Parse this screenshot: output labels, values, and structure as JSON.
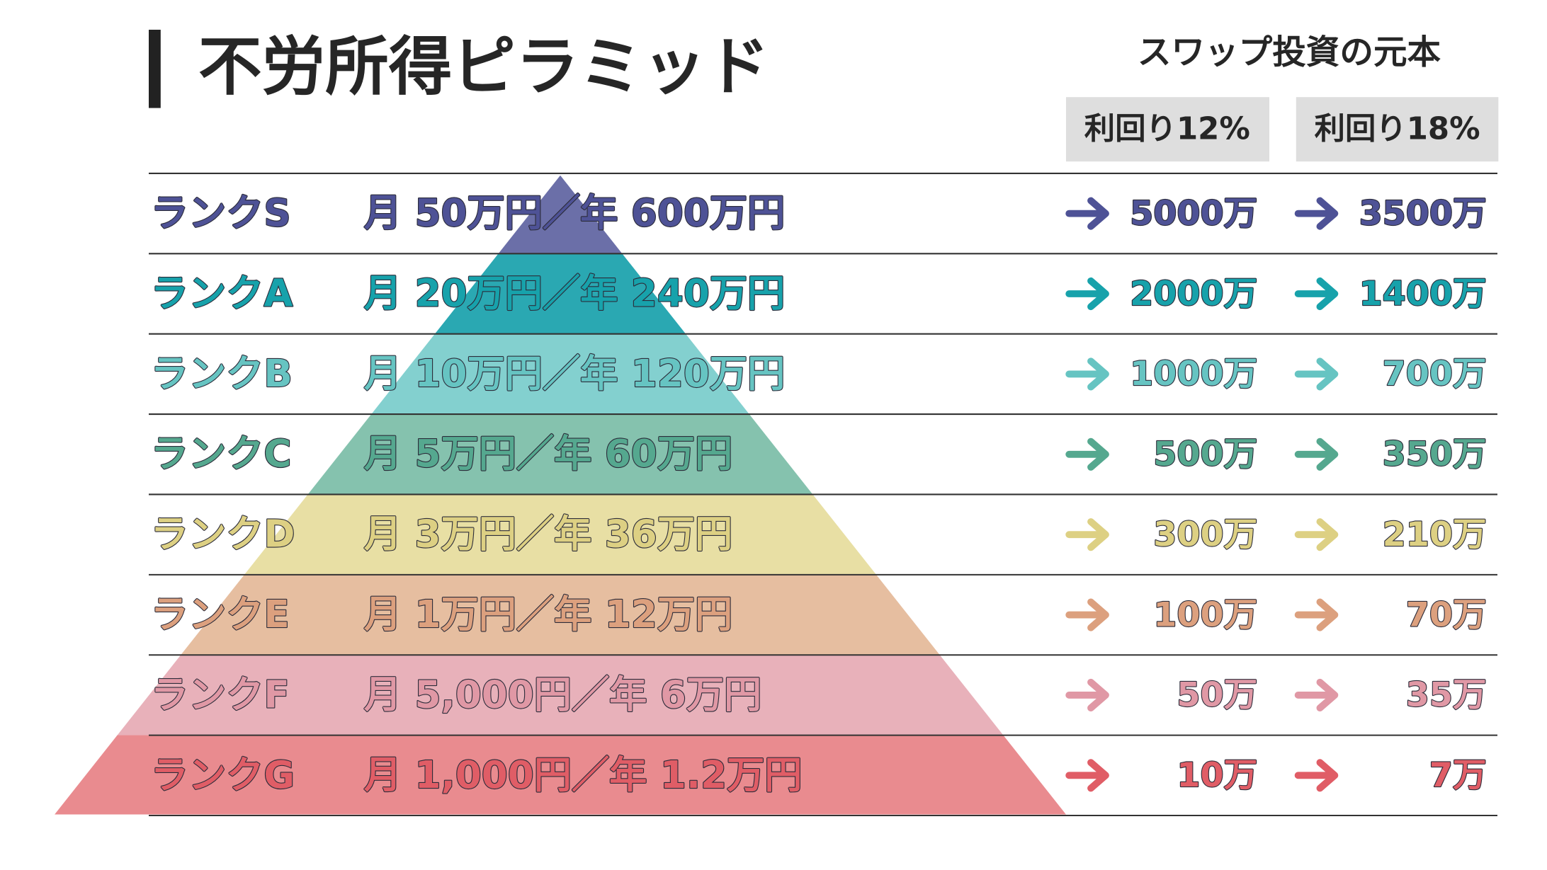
{
  "header": {
    "title": "不労所得ピラミッド",
    "subtitle": "スワップ投資の元本",
    "columns": [
      "利回り12%",
      "利回り18%"
    ]
  },
  "rows": [
    {
      "rank": "ランクS",
      "income": "月 50万円／年 600万円",
      "yield12": "5000万",
      "yield18": "3500万",
      "band_color": "#6b6fa8",
      "text_color": "#4e5296"
    },
    {
      "rank": "ランクA",
      "income": "月 20万円／年 240万円",
      "yield12": "2000万",
      "yield18": "1400万",
      "band_color": "#2aa8b2",
      "text_color": "#17a2ab"
    },
    {
      "rank": "ランクB",
      "income": "月 10万円／年 120万円",
      "yield12": "1000万",
      "yield18": "700万",
      "band_color": "#83d0cf",
      "text_color": "#66c4c2"
    },
    {
      "rank": "ランクC",
      "income": "月 5万円／年 60万円",
      "yield12": "500万",
      "yield18": "350万",
      "band_color": "#85c2ae",
      "text_color": "#55a88f"
    },
    {
      "rank": "ランクD",
      "income": "月 3万円／年 36万円",
      "yield12": "300万",
      "yield18": "210万",
      "band_color": "#e8dfa4",
      "text_color": "#ddd083"
    },
    {
      "rank": "ランクE",
      "income": "月 1万円／年 12万円",
      "yield12": "100万",
      "yield18": "70万",
      "band_color": "#e6bea0",
      "text_color": "#dca07e"
    },
    {
      "rank": "ランクF",
      "income": "月 5,000円／年 6万円",
      "yield12": "50万",
      "yield18": "35万",
      "band_color": "#e8b1ba",
      "text_color": "#e098a5"
    },
    {
      "rank": "ランクG",
      "income": "月 1,000円／年 1.2万円",
      "yield12": "10万",
      "yield18": "7万",
      "band_color": "#e98b8f",
      "text_color": "#e05d66"
    }
  ]
}
